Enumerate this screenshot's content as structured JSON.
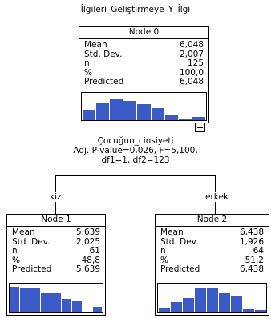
{
  "tree_title": "İlgileri_Geliştirmeye_Y_İlgi",
  "stat_labels": {
    "mean": "Mean",
    "std_dev": "Std. Dev.",
    "n": "n",
    "percent": "%",
    "predicted": "Predicted"
  },
  "nodes": [
    {
      "title": "Node 0",
      "mean": "6,048",
      "std_dev": "2,007",
      "n": "125",
      "percent": "100,0",
      "predicted": "6,048",
      "histogram": [
        0.4,
        0.68,
        0.82,
        0.76,
        0.62,
        0.48,
        0.22,
        0.06,
        0.12
      ]
    },
    {
      "title": "Node 1",
      "mean": "5,639",
      "std_dev": "2,025",
      "n": "61",
      "percent": "48,8",
      "predicted": "5,639",
      "histogram": [
        0.95,
        0.92,
        0.88,
        0.72,
        0.7,
        0.5,
        0.42,
        0.0,
        0.2
      ]
    },
    {
      "title": "Node 2",
      "mean": "6,438",
      "std_dev": "1,926",
      "n": "64",
      "percent": "51,2",
      "predicted": "6,438",
      "histogram": [
        0.18,
        0.38,
        0.52,
        0.9,
        0.92,
        0.72,
        0.62,
        0.12,
        0.08
      ]
    }
  ],
  "split": {
    "variable": "Çocuğun_cinsiyeti",
    "stats": "Adj. P-value=0,026, F=5,100,",
    "df": "df1=1, df2=123"
  },
  "branches": {
    "left": "kiz",
    "right": "erkek"
  },
  "colors": {
    "bar": "#3a5bc7"
  }
}
